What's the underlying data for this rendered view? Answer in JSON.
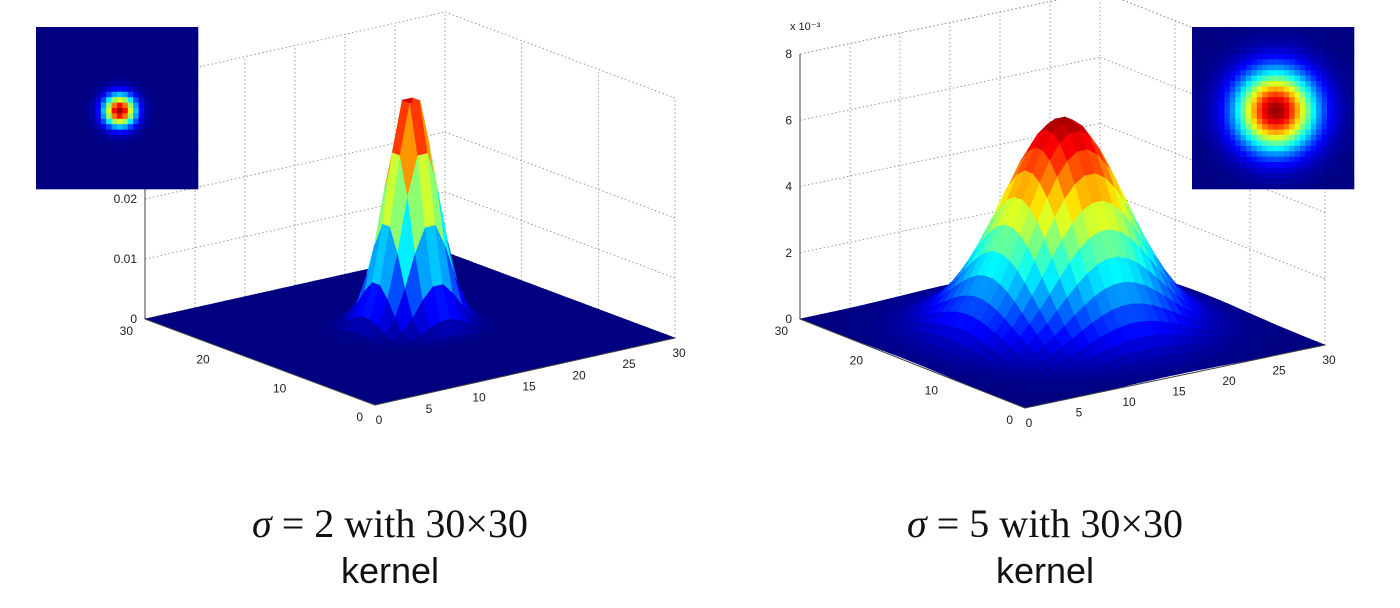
{
  "chart_data": [
    {
      "type": "surface",
      "sigma": 2,
      "grid": true,
      "x_range": [
        0,
        30
      ],
      "y_range": [
        0,
        30
      ],
      "zlim": [
        0,
        0.04
      ],
      "x_ticks": [
        "0",
        "5",
        "10",
        "15",
        "20",
        "25",
        "30"
      ],
      "y_ticks": [
        "0",
        "10",
        "20",
        "30"
      ],
      "z_ticks": [
        "0",
        "0.01",
        "0.02"
      ],
      "z_exponent_label": "",
      "peak": 0.04,
      "colormap": "jet",
      "inset": "top-left"
    },
    {
      "type": "surface",
      "sigma": 5,
      "grid": true,
      "x_range": [
        0,
        30
      ],
      "y_range": [
        0,
        30
      ],
      "zlim": [
        0,
        0.008
      ],
      "x_ticks": [
        "0",
        "5",
        "10",
        "15",
        "20",
        "25",
        "30"
      ],
      "y_ticks": [
        "0",
        "10",
        "20",
        "30"
      ],
      "z_ticks": [
        "0",
        "2",
        "4",
        "6",
        "8"
      ],
      "z_exponent_label": "x 10⁻³",
      "peak": 0.0064,
      "colormap": "jet",
      "inset": "top-right"
    }
  ],
  "captions": [
    {
      "sigma_symbol": "σ",
      "equals_text": " = 2 with 30×30",
      "line2": "kernel"
    },
    {
      "sigma_symbol": "σ",
      "equals_text": " = 5 with 30×30",
      "line2": "kernel"
    }
  ]
}
